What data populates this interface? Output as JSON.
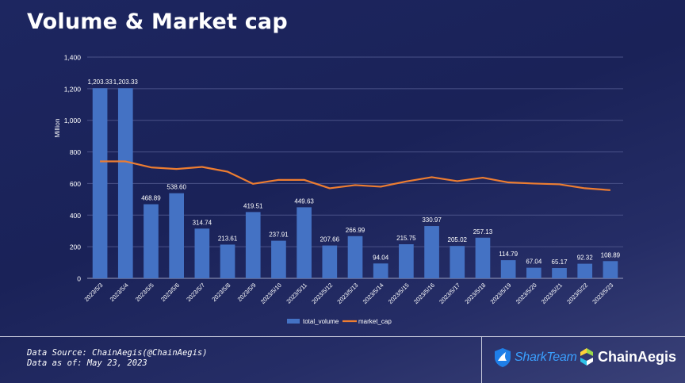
{
  "title": "Volume & Market cap",
  "footer": {
    "source": "Data Source: ChainAegis(@ChainAegis)",
    "date": "Data as of: May 23, 2023"
  },
  "logos": {
    "sharkteam": "SharkTeam",
    "chainaegis": "ChainAegis"
  },
  "chart_data": {
    "type": "bar",
    "ylabel": "Million",
    "ylim": [
      0,
      1400
    ],
    "yticks": [
      "0",
      "200",
      "400",
      "600",
      "800",
      "1,000",
      "1,200",
      "1,400"
    ],
    "ytick_values": [
      0,
      200,
      400,
      600,
      800,
      1000,
      1200,
      1400
    ],
    "grid": true,
    "legend_position": "bottom",
    "categories": [
      "2023/5/3",
      "2023/5/4",
      "2023/5/5",
      "2023/5/6",
      "2023/5/7",
      "2023/5/8",
      "2023/5/9",
      "2023/5/10",
      "2023/5/11",
      "2023/5/12",
      "2023/5/13",
      "2023/5/14",
      "2023/5/15",
      "2023/5/16",
      "2023/5/17",
      "2023/5/18",
      "2023/5/19",
      "2023/5/20",
      "2023/5/21",
      "2023/5/22",
      "2023/5/23"
    ],
    "series": [
      {
        "name": "total_volume",
        "kind": "bar",
        "color": "#4472c4",
        "values": [
          1203.33,
          1203.33,
          468.89,
          538.6,
          314.74,
          213.61,
          419.51,
          237.91,
          449.63,
          207.66,
          266.99,
          94.04,
          215.75,
          330.97,
          205.02,
          257.13,
          114.79,
          67.04,
          65.17,
          92.32,
          108.89
        ],
        "labels": [
          "1,203.33",
          "1,203.33",
          "468.89",
          "538.60",
          "314.74",
          "213.61",
          "419.51",
          "237.91",
          "449.63",
          "207.66",
          "266.99",
          "94.04",
          "215.75",
          "330.97",
          "205.02",
          "257.13",
          "114.79",
          "67.04",
          "65.17",
          "92.32",
          "108.89"
        ]
      },
      {
        "name": "market_cap",
        "kind": "line",
        "color": "#ed7d31",
        "values": [
          740,
          740,
          702,
          692,
          705,
          675,
          598,
          623,
          623,
          570,
          590,
          580,
          613,
          640,
          615,
          637,
          607,
          600,
          595,
          570,
          558
        ]
      }
    ]
  }
}
